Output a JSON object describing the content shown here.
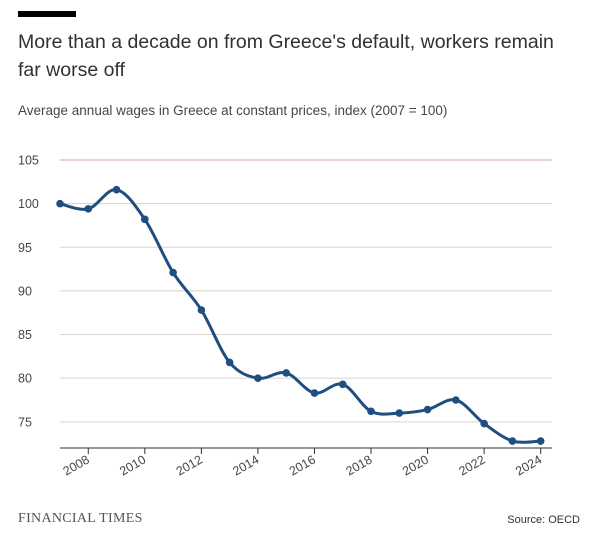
{
  "title": "More than a decade on from Greece's default, workers remain far worse off",
  "subtitle": "Average annual wages in Greece at constant prices, index (2007 = 100)",
  "brand": "FINANCIAL TIMES",
  "source": "Source: OECD",
  "colors": {
    "line": "#1f4e7f",
    "grid": "#d9d3cd",
    "baseline_grid": "#d4a5a5",
    "axis": "#33302e"
  },
  "chart_data": {
    "type": "line",
    "title": "More than a decade on from Greece's default, workers remain far worse off",
    "subtitle": "Average annual wages in Greece at constant prices, index (2007 = 100)",
    "xlabel": "",
    "ylabel": "",
    "x": [
      2007,
      2008,
      2009,
      2010,
      2011,
      2012,
      2013,
      2014,
      2015,
      2016,
      2017,
      2018,
      2019,
      2020,
      2021,
      2022,
      2023,
      2024
    ],
    "series": [
      {
        "values": [
          100,
          99.4,
          101.6,
          98.2,
          92.1,
          87.8,
          81.8,
          80.0,
          80.6,
          78.3,
          79.3,
          76.2,
          76.0,
          76.4,
          77.5,
          74.8,
          72.8,
          72.8
        ]
      }
    ],
    "xticks": [
      "2008",
      "2010",
      "2012",
      "2014",
      "2016",
      "2018",
      "2020",
      "2022",
      "2024"
    ],
    "yticks": [
      75,
      80,
      85,
      90,
      95,
      100,
      105
    ],
    "xlim": [
      2007,
      2024.4
    ],
    "ylim": [
      72,
      105
    ],
    "grid": true,
    "legend": "none"
  }
}
